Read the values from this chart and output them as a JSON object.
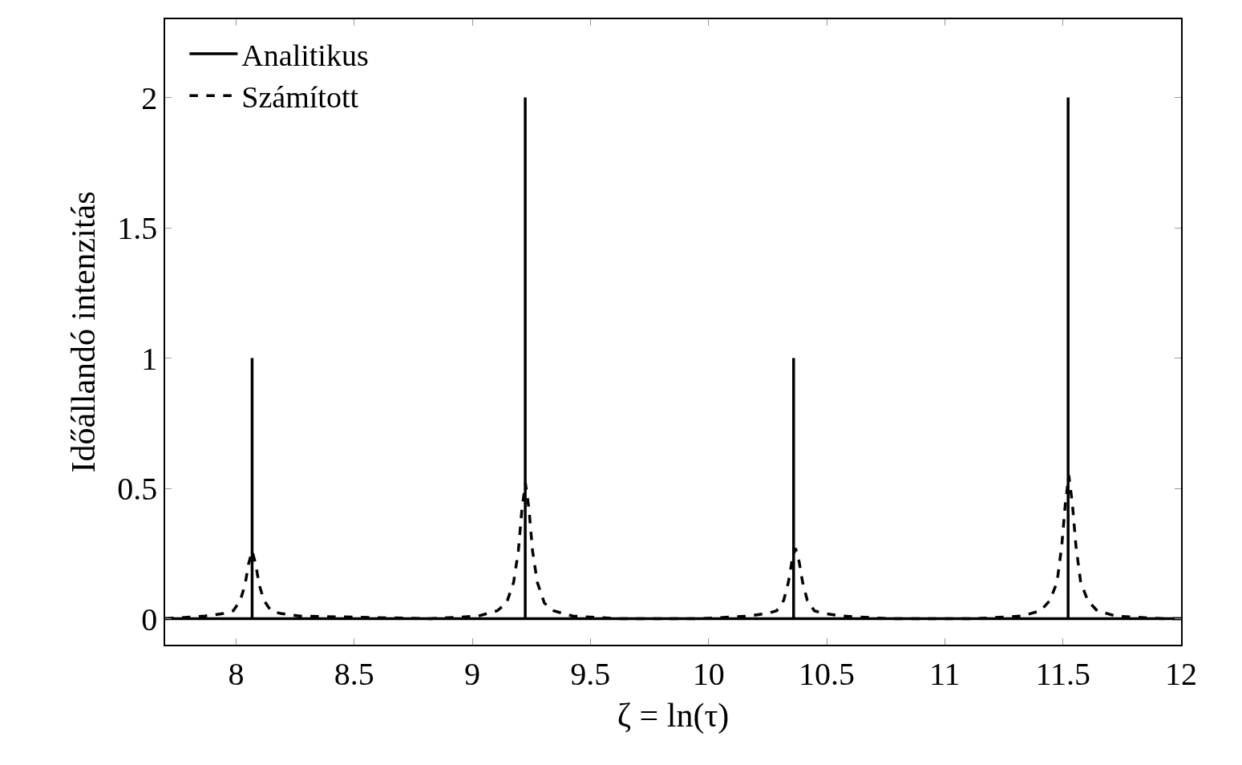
{
  "chart_data": {
    "type": "line",
    "xlabel": "ζ = ln(τ)",
    "ylabel": "Időállandó intenzitás",
    "xlim": [
      7.7,
      12
    ],
    "ylim": [
      -0.1,
      2.3
    ],
    "xticks": [
      8,
      8.5,
      9,
      9.5,
      10,
      10.5,
      11,
      11.5,
      12
    ],
    "yticks": [
      0,
      0.5,
      1,
      1.5,
      2
    ],
    "legend": "top left",
    "marker": "none",
    "series": [
      {
        "name": "Analitikus",
        "color": "#000000",
        "line_style": "solid",
        "x": [
          7.7,
          8.068,
          8.068,
          8.068,
          9.224,
          9.224,
          9.224,
          10.36,
          10.36,
          10.36,
          11.522,
          11.522,
          11.522,
          12
        ],
        "values": [
          0,
          0,
          1,
          0,
          0,
          2,
          0,
          0,
          1,
          0,
          0,
          2,
          0,
          0
        ]
      },
      {
        "name": "Számított",
        "color": "#000000",
        "line_style": "dashed",
        "x": [
          7.7,
          7.868,
          7.948,
          7.988,
          8.018,
          8.038,
          8.053,
          8.068,
          8.083,
          8.098,
          8.118,
          8.148,
          8.188,
          8.268,
          8.825,
          9.025,
          9.105,
          9.145,
          9.175,
          9.195,
          9.21,
          9.225,
          9.24,
          9.255,
          9.275,
          9.305,
          9.345,
          9.425,
          9.625,
          9.968,
          10.168,
          10.248,
          10.288,
          10.318,
          10.338,
          10.353,
          10.368,
          10.383,
          10.398,
          10.418,
          10.448,
          10.488,
          10.568,
          10.768,
          11.125,
          11.325,
          11.405,
          11.445,
          11.475,
          11.495,
          11.51,
          11.525,
          11.54,
          11.555,
          11.575,
          11.605,
          11.645,
          11.725,
          11.925,
          12
        ],
        "values": [
          0,
          0.01,
          0.02,
          0.03,
          0.07,
          0.13,
          0.21,
          0.26,
          0.21,
          0.13,
          0.07,
          0.03,
          0.02,
          0.01,
          0,
          0.01,
          0.03,
          0.06,
          0.14,
          0.26,
          0.42,
          0.52,
          0.42,
          0.26,
          0.14,
          0.06,
          0.03,
          0.01,
          0,
          0,
          0.01,
          0.02,
          0.03,
          0.07,
          0.14,
          0.22,
          0.27,
          0.22,
          0.14,
          0.07,
          0.03,
          0.02,
          0.01,
          0,
          0,
          0.01,
          0.03,
          0.07,
          0.14,
          0.28,
          0.44,
          0.55,
          0.44,
          0.28,
          0.14,
          0.07,
          0.03,
          0.01,
          0,
          0
        ]
      }
    ]
  }
}
